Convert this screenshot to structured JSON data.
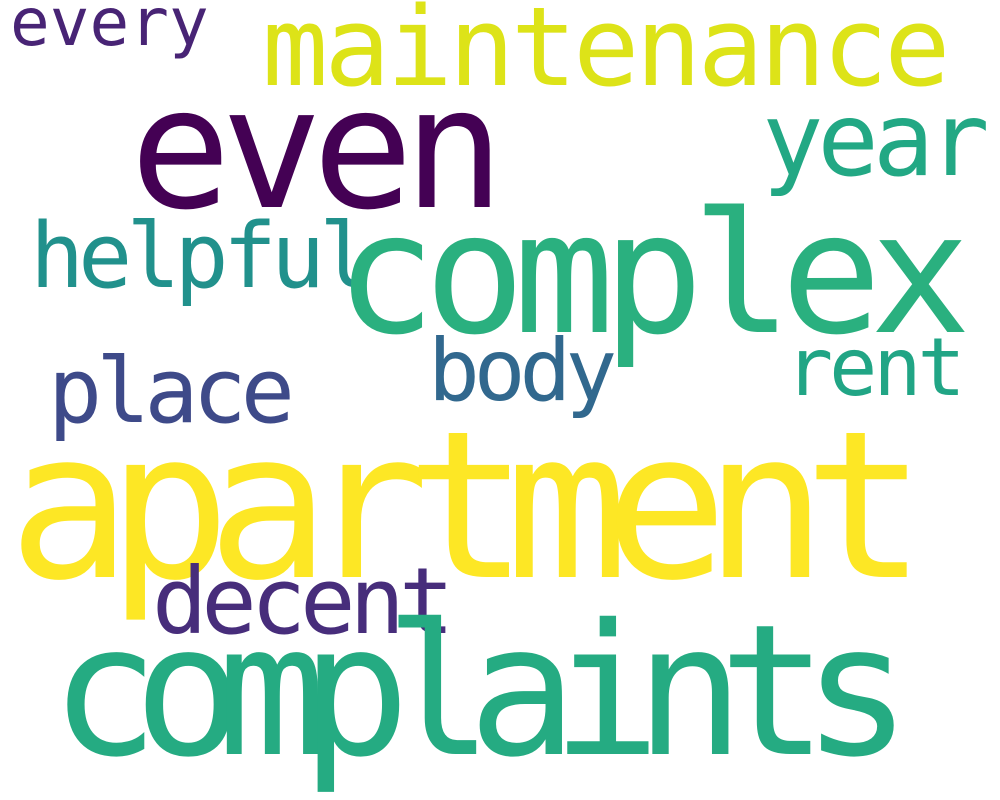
{
  "words": {
    "every": {
      "text": "every",
      "color": "#482475"
    },
    "maintenance": {
      "text": "maintenance",
      "color": "#dde318"
    },
    "even": {
      "text": "even",
      "color": "#440154"
    },
    "year": {
      "text": "year",
      "color": "#22a884"
    },
    "helpful": {
      "text": "helpful",
      "color": "#21918c"
    },
    "complex": {
      "text": "complex",
      "color": "#2ab07f"
    },
    "place": {
      "text": "place",
      "color": "#3e4a89"
    },
    "body": {
      "text": "body",
      "color": "#31688e"
    },
    "rent": {
      "text": "rent",
      "color": "#21a585"
    },
    "apartment": {
      "text": "apartment",
      "color": "#fde725"
    },
    "decent": {
      "text": "decent",
      "color": "#472d7b"
    },
    "complaints": {
      "text": "complaints",
      "color": "#25ab82"
    }
  }
}
